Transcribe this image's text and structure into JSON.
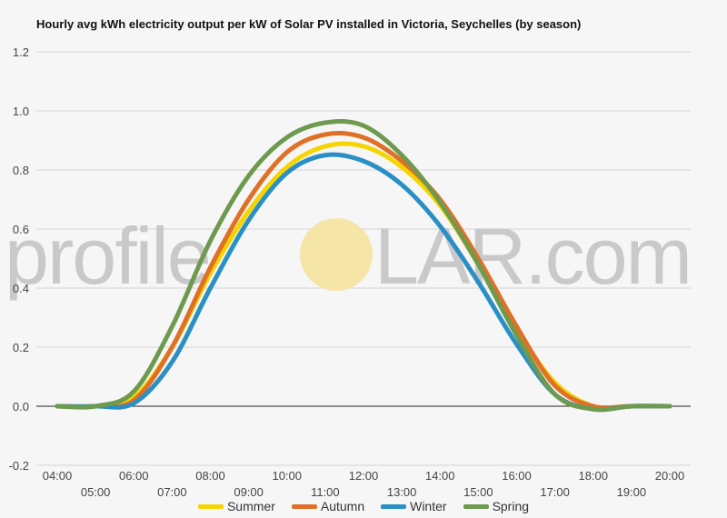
{
  "title": "Hourly avg kWh electricity output per kW of Solar PV installed in Victoria, Seychelles (by season)",
  "watermark": {
    "left": "profile",
    "right": "LAR.com",
    "sun_color": "#f5e6a8"
  },
  "chart_data": {
    "type": "line",
    "title": "Hourly avg kWh electricity output per kW of Solar PV installed in Victoria, Seychelles (by season)",
    "xlabel": "",
    "ylabel": "",
    "x": [
      "04:00",
      "05:00",
      "06:00",
      "07:00",
      "08:00",
      "09:00",
      "10:00",
      "11:00",
      "12:00",
      "13:00",
      "14:00",
      "15:00",
      "16:00",
      "17:00",
      "18:00",
      "19:00",
      "20:00"
    ],
    "ylim": [
      -0.2,
      1.2
    ],
    "yticks": [
      -0.2,
      0.0,
      0.2,
      0.4,
      0.6,
      0.8,
      1.0,
      1.2
    ],
    "ytick_labels": [
      "-0.2",
      "0.0",
      "0.2",
      "0.4",
      "0.6",
      "0.8",
      "1.0",
      "1.2"
    ],
    "grid": true,
    "legend_position": "bottom",
    "series": [
      {
        "name": "Summer",
        "color": "#f5d400",
        "values": [
          0.0,
          0.0,
          0.03,
          0.2,
          0.45,
          0.66,
          0.81,
          0.88,
          0.88,
          0.81,
          0.68,
          0.48,
          0.26,
          0.08,
          0.0,
          0.0,
          0.0
        ]
      },
      {
        "name": "Autumn",
        "color": "#e07026",
        "values": [
          0.0,
          0.0,
          0.02,
          0.2,
          0.47,
          0.7,
          0.86,
          0.92,
          0.91,
          0.83,
          0.7,
          0.5,
          0.27,
          0.07,
          0.0,
          0.0,
          0.0
        ]
      },
      {
        "name": "Winter",
        "color": "#2a8fc4",
        "values": [
          0.0,
          0.0,
          0.01,
          0.15,
          0.4,
          0.63,
          0.79,
          0.85,
          0.83,
          0.75,
          0.61,
          0.42,
          0.21,
          0.04,
          -0.01,
          0.0,
          0.0
        ]
      },
      {
        "name": "Spring",
        "color": "#6e9a4f",
        "values": [
          0.0,
          0.0,
          0.05,
          0.27,
          0.56,
          0.78,
          0.91,
          0.96,
          0.95,
          0.85,
          0.69,
          0.48,
          0.24,
          0.04,
          -0.01,
          0.0,
          0.0
        ]
      }
    ]
  }
}
